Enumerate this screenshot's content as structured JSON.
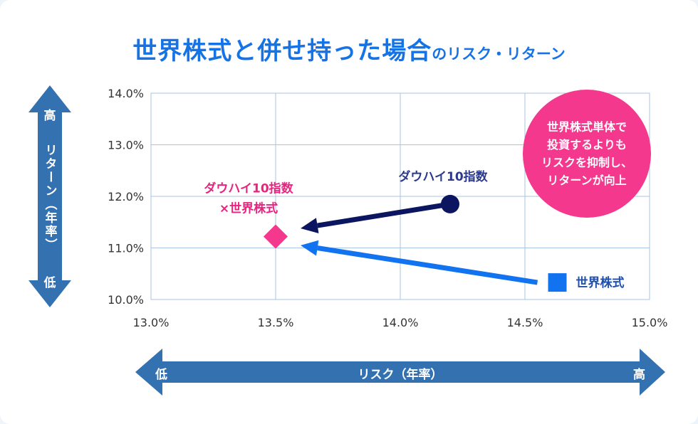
{
  "title": {
    "main": "世界株式と併せ持った場合",
    "sub": "のリスク・リターン"
  },
  "y_arrow": {
    "top": "高",
    "middle": "リターン（年率）",
    "bottom": "低"
  },
  "x_arrow": {
    "left": "低",
    "middle": "リスク（年率）",
    "right": "高"
  },
  "callout": {
    "lines": [
      "世界株式単体で",
      "投資するよりも",
      "リスクを抑制し、",
      "リターンが向上"
    ]
  },
  "colors": {
    "title": "#1673e6",
    "axis_arrow": "#3471b0",
    "navy": "#0b1560",
    "blue": "#1273f0",
    "pink": "#f4388e",
    "grid": "#a9c4e0"
  },
  "chart_data": {
    "type": "scatter",
    "xlabel": "リスク（年率）",
    "ylabel": "リターン（年率）",
    "xlim": [
      13.0,
      15.0
    ],
    "ylim": [
      10.0,
      14.0
    ],
    "x_ticks": [
      "13.0%",
      "13.5%",
      "14.0%",
      "14.5%",
      "15.0%"
    ],
    "y_ticks": [
      "14.0%",
      "13.0%",
      "12.0%",
      "11.0%",
      "10.0%"
    ],
    "grid": true,
    "points": [
      {
        "name": "ダウハイ10指数",
        "x": 14.2,
        "y": 11.85,
        "marker": "circle",
        "color": "#0b1560"
      },
      {
        "name": "世界株式",
        "x": 14.63,
        "y": 10.33,
        "marker": "square",
        "color": "#1273f0"
      },
      {
        "name": "ダウハイ10指数×世界株式",
        "label_lines": [
          "ダウハイ10指数",
          "×世界株式"
        ],
        "x": 13.5,
        "y": 11.22,
        "marker": "diamond",
        "color": "#f4388e"
      }
    ],
    "arrows": [
      {
        "from": [
          14.2,
          11.85
        ],
        "to": [
          13.6,
          11.38
        ],
        "color": "#0b1560"
      },
      {
        "from": [
          14.55,
          10.33
        ],
        "to": [
          13.6,
          11.05
        ],
        "color": "#1273f0"
      }
    ]
  }
}
